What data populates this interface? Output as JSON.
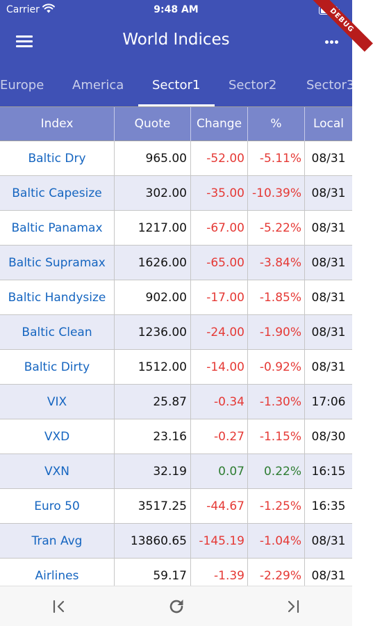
{
  "status_bar": {
    "carrier": "Carrier",
    "time": "9:48 AM"
  },
  "appbar": {
    "title": "World Indices",
    "debug_banner": "DEBUG"
  },
  "tabs": [
    "Europe",
    "America",
    "Sector1",
    "Sector2",
    "Sector3"
  ],
  "active_tab": "Sector1",
  "table": {
    "headers": [
      "Index",
      "Quote",
      "Change",
      "%",
      "Local"
    ],
    "rows": [
      {
        "index": "Baltic Dry",
        "quote": "965.00",
        "change": "-52.00",
        "pct": "-5.11%",
        "local": "08/31",
        "trend": "neg"
      },
      {
        "index": "Baltic Capesize",
        "quote": "302.00",
        "change": "-35.00",
        "pct": "-10.39%",
        "local": "08/31",
        "trend": "neg"
      },
      {
        "index": "Baltic Panamax",
        "quote": "1217.00",
        "change": "-67.00",
        "pct": "-5.22%",
        "local": "08/31",
        "trend": "neg"
      },
      {
        "index": "Baltic Supramax",
        "quote": "1626.00",
        "change": "-65.00",
        "pct": "-3.84%",
        "local": "08/31",
        "trend": "neg"
      },
      {
        "index": "Baltic Handysize",
        "quote": "902.00",
        "change": "-17.00",
        "pct": "-1.85%",
        "local": "08/31",
        "trend": "neg"
      },
      {
        "index": "Baltic Clean",
        "quote": "1236.00",
        "change": "-24.00",
        "pct": "-1.90%",
        "local": "08/31",
        "trend": "neg"
      },
      {
        "index": "Baltic Dirty",
        "quote": "1512.00",
        "change": "-14.00",
        "pct": "-0.92%",
        "local": "08/31",
        "trend": "neg"
      },
      {
        "index": "VIX",
        "quote": "25.87",
        "change": "-0.34",
        "pct": "-1.30%",
        "local": "17:06",
        "trend": "neg"
      },
      {
        "index": "VXD",
        "quote": "23.16",
        "change": "-0.27",
        "pct": "-1.15%",
        "local": "08/30",
        "trend": "neg"
      },
      {
        "index": "VXN",
        "quote": "32.19",
        "change": "0.07",
        "pct": "0.22%",
        "local": "16:15",
        "trend": "pos"
      },
      {
        "index": "Euro 50",
        "quote": "3517.25",
        "change": "-44.67",
        "pct": "-1.25%",
        "local": "16:35",
        "trend": "neg"
      },
      {
        "index": "Tran Avg",
        "quote": "13860.65",
        "change": "-145.19",
        "pct": "-1.04%",
        "local": "08/31",
        "trend": "neg"
      },
      {
        "index": "Airlines",
        "quote": "59.17",
        "change": "-1.39",
        "pct": "-2.29%",
        "local": "08/31",
        "trend": "neg"
      }
    ]
  },
  "bottom_nav": [
    "first-page-icon",
    "refresh-icon",
    "last-page-icon"
  ],
  "colors": {
    "appbar": "#3f51b5",
    "header": "#7986cb",
    "alt_row": "#e8eaf6",
    "negative": "#e53935",
    "positive": "#2e7d32",
    "index_link": "#1565c0"
  }
}
